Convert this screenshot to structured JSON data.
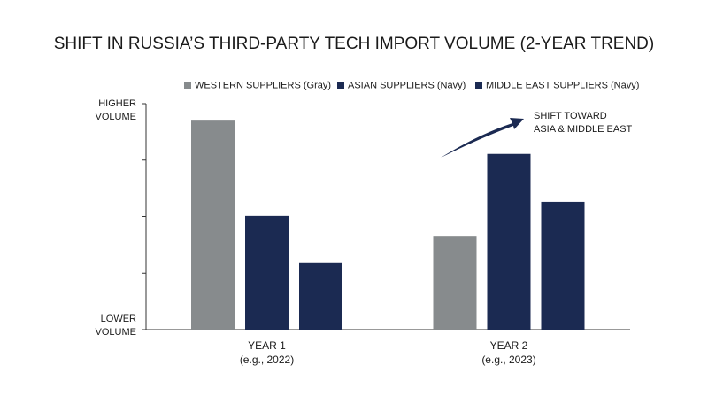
{
  "chart_data": {
    "type": "bar",
    "title": "SHIFT IN RUSSIA’S THIRD-PARTY TECH IMPORT VOLUME (2-YEAR TREND)",
    "categories": [
      "YEAR 1",
      "YEAR 2"
    ],
    "category_notes": [
      "(e.g., 2022)",
      "(e.g., 2023)"
    ],
    "series": [
      {
        "name": "WESTERN SUPPLIERS (Gray)",
        "color": "#878b8d",
        "values": [
          3.7,
          1.66
        ]
      },
      {
        "name": "ASIAN SUPPLIERS (Navy)",
        "color": "#1b2a52",
        "values": [
          2.01,
          3.11
        ]
      },
      {
        "name": "MIDDLE EAST SUPPLIERS (Navy)",
        "color": "#1b2a52",
        "values": [
          1.18,
          2.26
        ]
      }
    ],
    "ylim": [
      0,
      4
    ],
    "yticks": [
      {
        "value": 0,
        "label": "LOWER VOLUME"
      },
      {
        "value": 1,
        "label": null
      },
      {
        "value": 2,
        "label": null
      },
      {
        "value": 3,
        "label": null
      },
      {
        "value": 4,
        "label": "HIGHER VOLUME"
      }
    ],
    "annotation": [
      "SHIFT TOWARD",
      "ASIA & MIDDLE EAST"
    ],
    "legend": "top"
  }
}
